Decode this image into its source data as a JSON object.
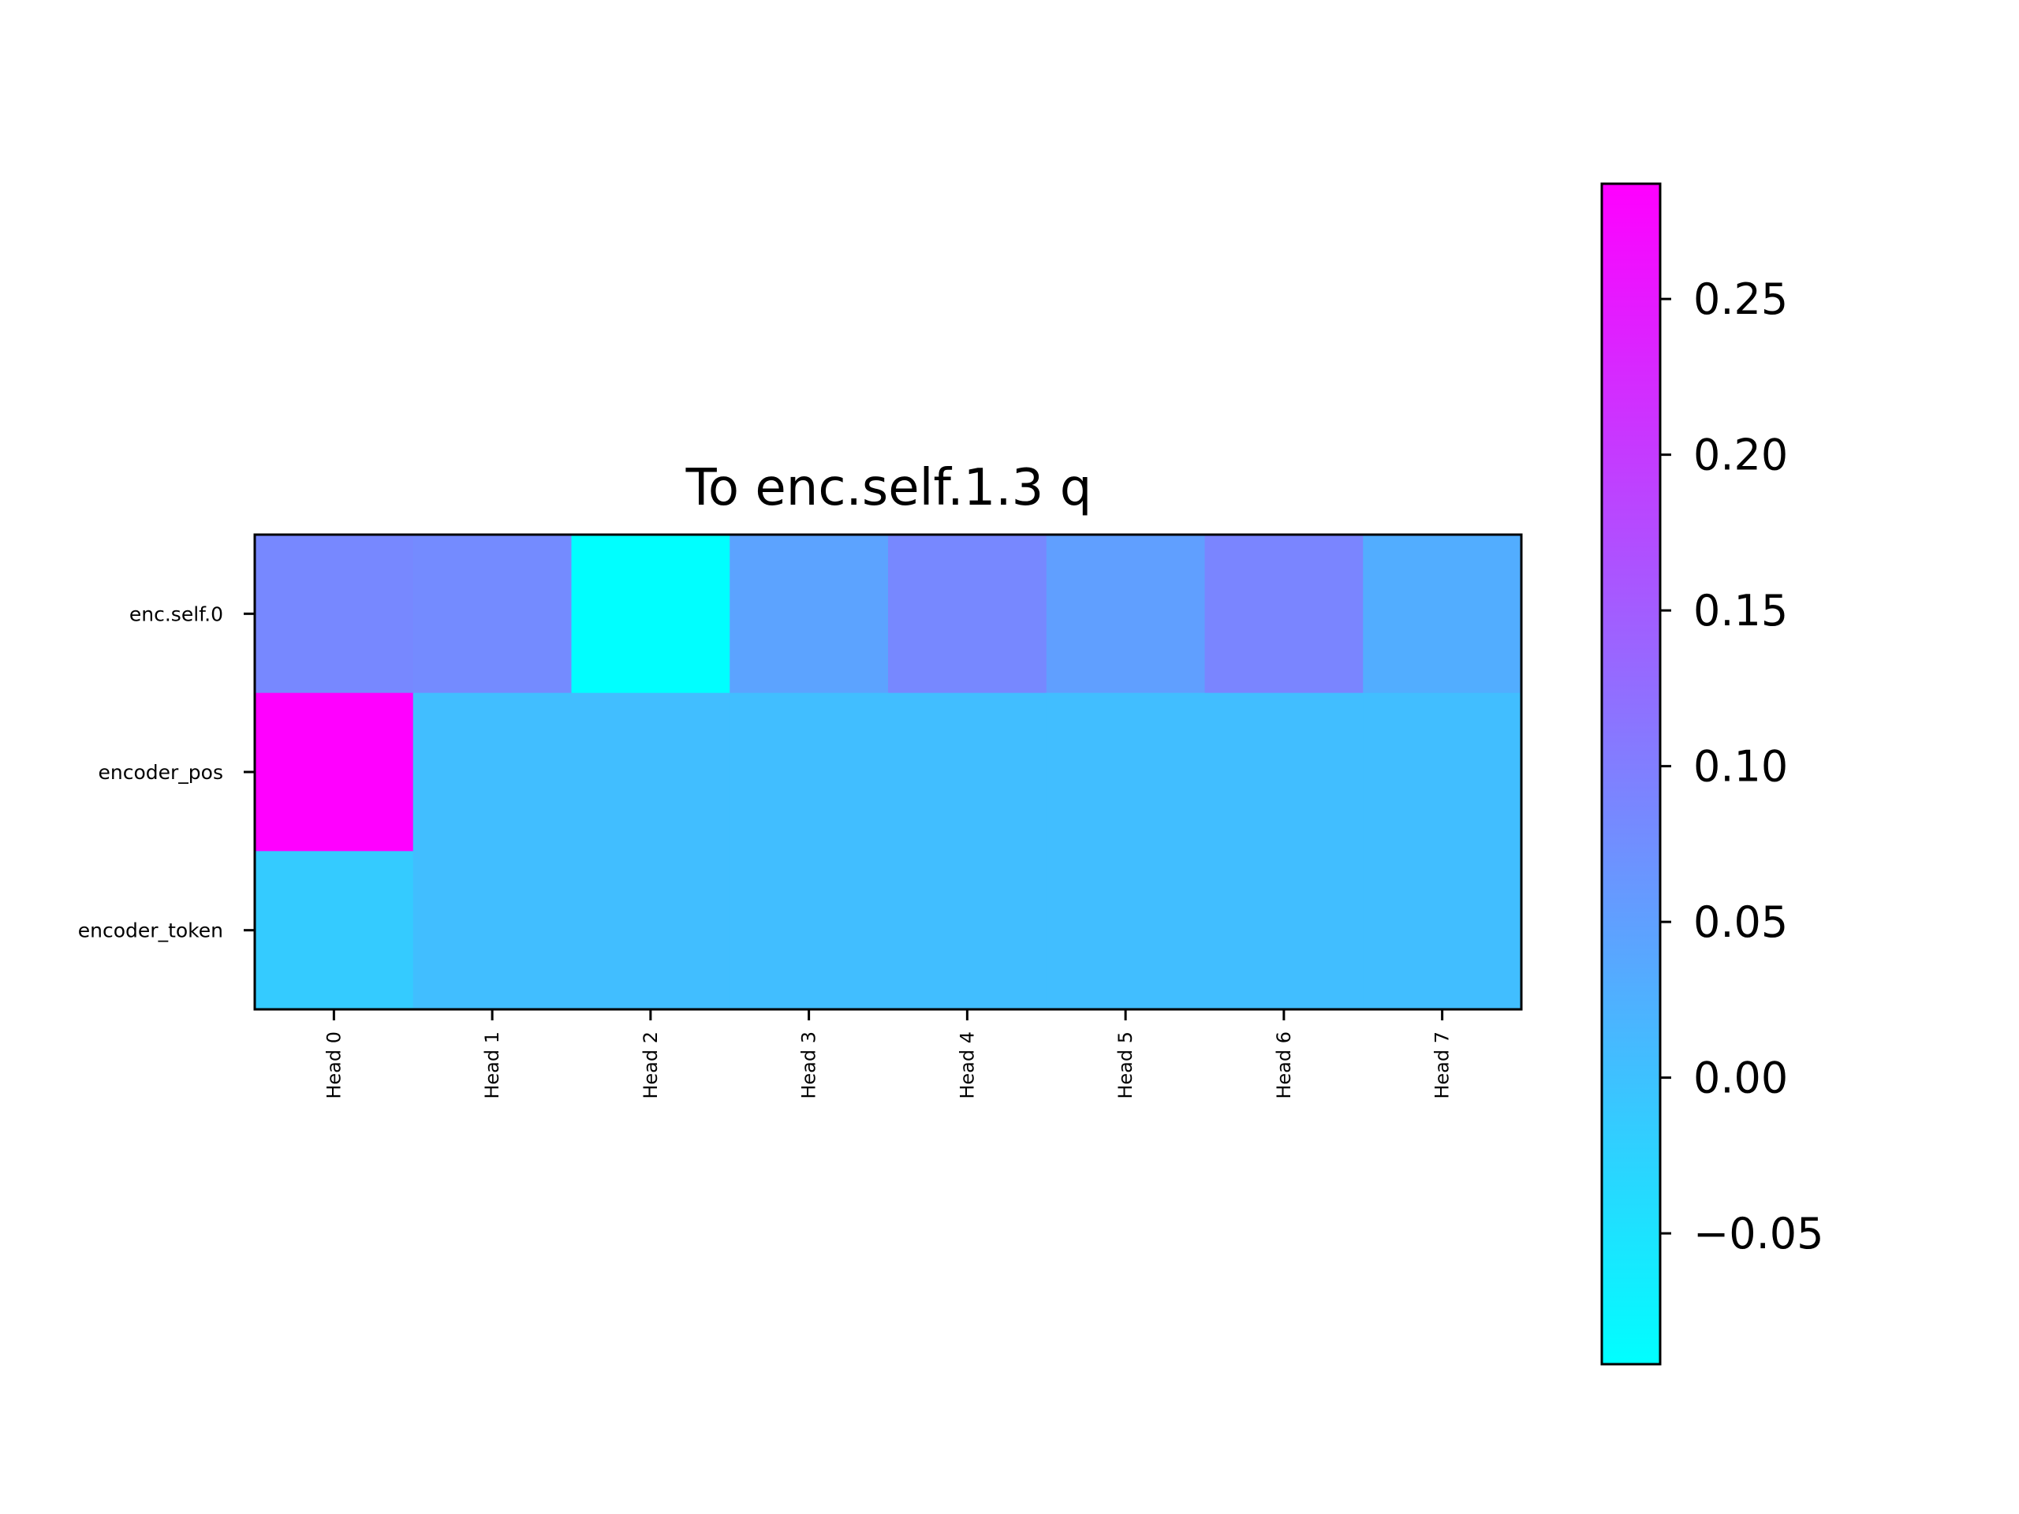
{
  "chart_data": {
    "type": "heatmap",
    "title": "To enc.self.1.3 q",
    "xlabel": "",
    "ylabel": "",
    "x_categories": [
      "Head 0",
      "Head 1",
      "Head 2",
      "Head 3",
      "Head 4",
      "Head 5",
      "Head 6",
      "Head 7"
    ],
    "y_categories": [
      "enc.self.0",
      "encoder_pos",
      "encoder_token"
    ],
    "values": [
      [
        0.085,
        0.08,
        -0.092,
        0.045,
        0.085,
        0.05,
        0.09,
        0.03
      ],
      [
        0.287,
        0.005,
        0.005,
        0.005,
        0.005,
        0.005,
        0.005,
        0.005
      ],
      [
        -0.015,
        0.005,
        0.005,
        0.005,
        0.005,
        0.005,
        0.005,
        0.005
      ]
    ],
    "colormap": "cool",
    "colormap_colors": [
      "#00ffff",
      "#ff00ff"
    ],
    "colorbar": {
      "range": [
        -0.092,
        0.287
      ],
      "ticks": [
        -0.05,
        0.0,
        0.05,
        0.1,
        0.15,
        0.2,
        0.25
      ],
      "tick_labels": [
        "−0.05",
        "0.00",
        "0.05",
        "0.10",
        "0.15",
        "0.20",
        "0.25"
      ]
    },
    "grid": false,
    "legend": "none"
  }
}
